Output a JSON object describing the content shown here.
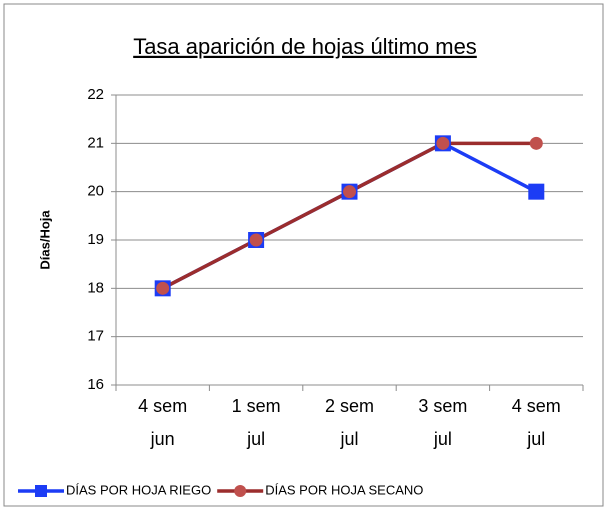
{
  "chart_data": {
    "type": "line",
    "title": "Tasa aparición de hojas último mes",
    "y_label": "Días/Hoja",
    "categories": [
      "4 sem jun",
      "1 sem jul",
      "2 sem jul",
      "3 sem jul",
      "4 sem jul"
    ],
    "series": [
      {
        "name": "DÍAS POR HOJA RIEGO",
        "color": "#1c3cf5",
        "marker": "square",
        "values": [
          18,
          19,
          20,
          21,
          20
        ]
      },
      {
        "name": "DÍAS POR HOJA SECANO",
        "color": "#9b2d2d",
        "marker_color": "#c0504d",
        "marker": "circle",
        "values": [
          18,
          19,
          20,
          21,
          21
        ]
      }
    ],
    "ylim": [
      16,
      22
    ],
    "yticks": [
      16,
      17,
      18,
      19,
      20,
      21,
      22
    ],
    "grid": true,
    "legend": "bottom"
  }
}
